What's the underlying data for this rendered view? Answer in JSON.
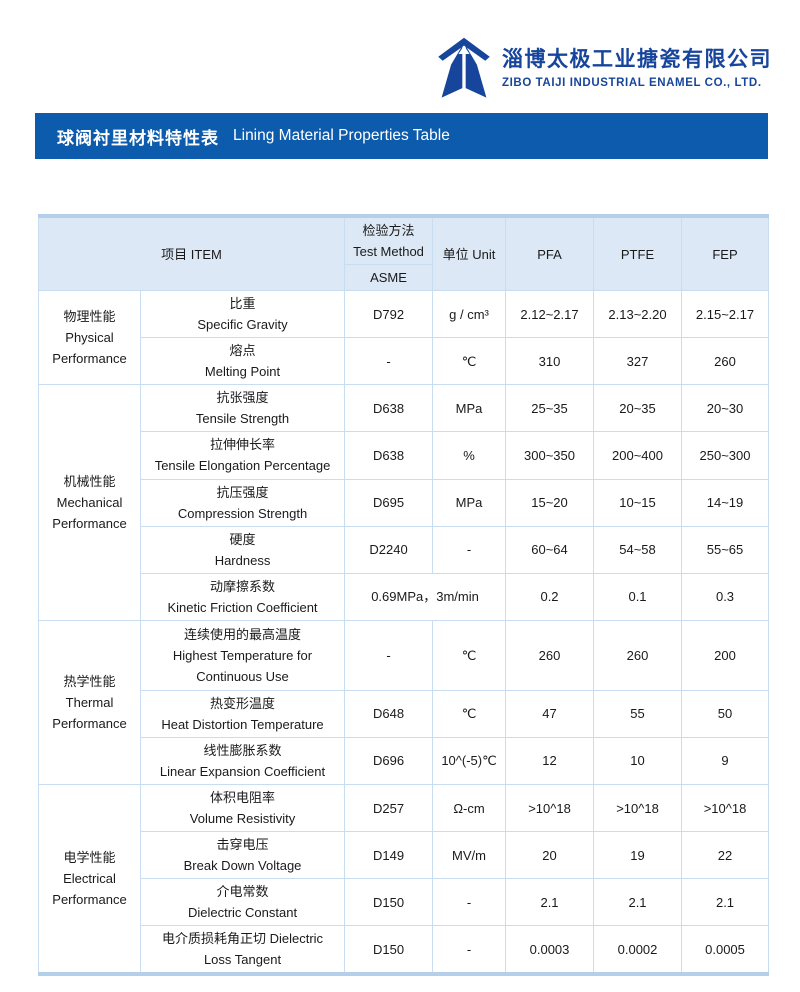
{
  "brand": {
    "logo": "taiji-roof-logo",
    "name_cn": "淄博太极工业搪瓷有限公司",
    "name_en": "ZIBO TAIJI INDUSTRIAL ENAMEL CO., LTD."
  },
  "banner": {
    "title_cn": "球阀衬里材料特性表",
    "title_en": "Lining Material Properties Table"
  },
  "colors": {
    "banner_blue": "#0d5bac",
    "brand_blue": "#17459c",
    "header_bg": "#dce8f5",
    "cell_border": "#c9ddf1",
    "frame_border": "#b3cfe9"
  },
  "table": {
    "header": {
      "item": "项目 ITEM",
      "method_cn": "检验方法",
      "method_en": "Test Method",
      "method_standard": "ASME",
      "unit": "单位 Unit",
      "materials": [
        "PFA",
        "PTFE",
        "FEP"
      ]
    },
    "groups": [
      {
        "category_cn": "物理性能",
        "category_en": "Physical Performance",
        "rows": [
          {
            "lines": [
              "比重",
              "Specific Gravity"
            ],
            "method": "D792",
            "unit": "g / cm³",
            "values": [
              "2.12~2.17",
              "2.13~2.20",
              "2.15~2.17"
            ]
          },
          {
            "lines": [
              "熔点",
              "Melting Point"
            ],
            "method": "-",
            "unit": "℃",
            "values": [
              "310",
              "327",
              "260"
            ]
          }
        ]
      },
      {
        "category_cn": "机械性能",
        "category_en": "Mechanical Performance",
        "rows": [
          {
            "lines": [
              "抗张强度",
              "Tensile Strength"
            ],
            "method": "D638",
            "unit": "MPa",
            "values": [
              "25~35",
              "20~35",
              "20~30"
            ]
          },
          {
            "lines": [
              "拉伸伸长率",
              "Tensile Elongation Percentage"
            ],
            "method": "D638",
            "unit": "%",
            "values": [
              "300~350",
              "200~400",
              "250~300"
            ]
          },
          {
            "lines": [
              "抗压强度",
              "Compression Strength"
            ],
            "method": "D695",
            "unit": "MPa",
            "values": [
              "15~20",
              "10~15",
              "14~19"
            ]
          },
          {
            "lines": [
              "硬度",
              "Hardness"
            ],
            "method": "D2240",
            "unit": "-",
            "values": [
              "60~64",
              "54~58",
              "55~65"
            ]
          },
          {
            "lines": [
              "动摩擦系数",
              "Kinetic Friction Coefficient"
            ],
            "method_unit_merged": "0.69MPa，3m/min",
            "values": [
              "0.2",
              "0.1",
              "0.3"
            ]
          }
        ]
      },
      {
        "category_cn": "热学性能",
        "category_en": "Thermal Performance",
        "rows": [
          {
            "lines": [
              "连续使用的最高温度",
              "Highest Temperature for",
              "Continuous Use"
            ],
            "tall": true,
            "method": "-",
            "unit": "℃",
            "values": [
              "260",
              "260",
              "200"
            ]
          },
          {
            "lines": [
              "热变形温度",
              "Heat Distortion Temperature"
            ],
            "method": "D648",
            "unit": "℃",
            "values": [
              "47",
              "55",
              "50"
            ]
          },
          {
            "lines": [
              "线性膨胀系数",
              "Linear Expansion Coefficient"
            ],
            "method": "D696",
            "unit": "10^(-5)℃",
            "values": [
              "12",
              "10",
              "9"
            ]
          }
        ]
      },
      {
        "category_cn": "电学性能",
        "category_en": "Electrical Performance",
        "rows": [
          {
            "lines": [
              "体积电阻率",
              "Volume Resistivity"
            ],
            "method": "D257",
            "unit": "Ω-cm",
            "values": [
              ">10^18",
              ">10^18",
              ">10^18"
            ]
          },
          {
            "lines": [
              "击穿电压",
              "Break Down Voltage"
            ],
            "method": "D149",
            "unit": "MV/m",
            "values": [
              "20",
              "19",
              "22"
            ]
          },
          {
            "lines": [
              "介电常数",
              "Dielectric Constant"
            ],
            "method": "D150",
            "unit": "-",
            "values": [
              "2.1",
              "2.1",
              "2.1"
            ]
          },
          {
            "lines": [
              "电介质损耗角正切 Dielectric",
              "Loss Tangent"
            ],
            "method": "D150",
            "unit": "-",
            "values": [
              "0.0003",
              "0.0002",
              "0.0005"
            ]
          }
        ]
      }
    ]
  }
}
